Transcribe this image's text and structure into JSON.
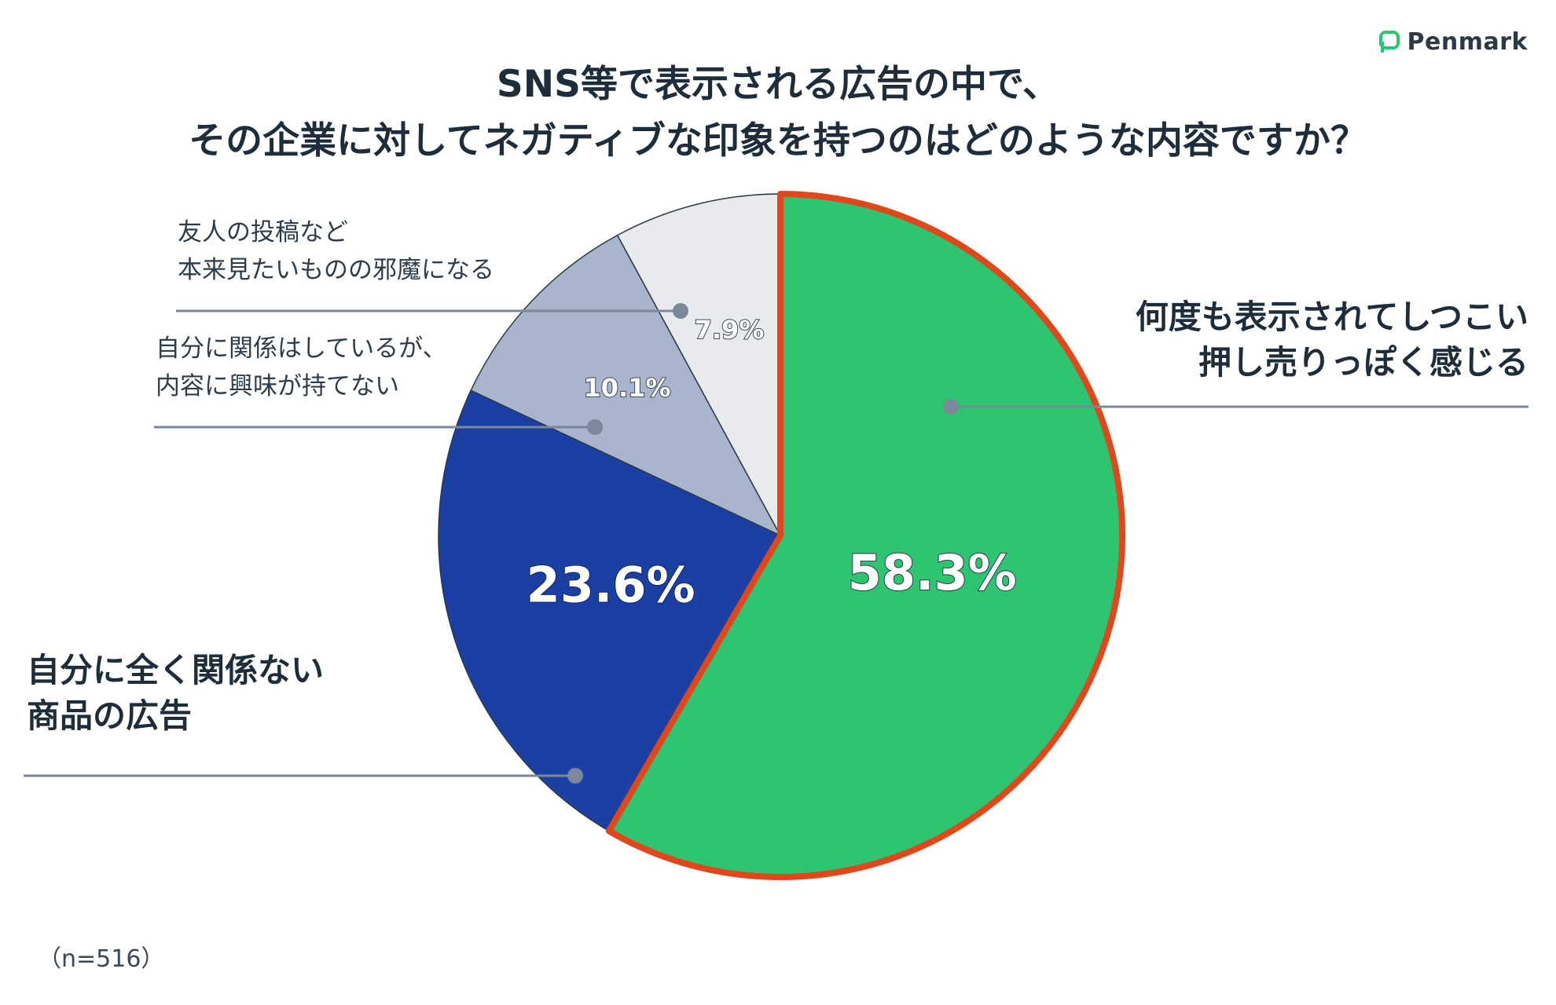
{
  "brand": {
    "name": "Penmark",
    "accent": "#2ec472"
  },
  "title": {
    "line1": "SNS等で表示される広告の中で、",
    "line2": "その企業に対してネガティブな印象を持つのはどのような内容ですか？"
  },
  "note": "（n=516）",
  "chart_data": {
    "type": "pie",
    "title": "SNS等で表示される広告の中で、その企業に対してネガティブな印象を持つのはどのような内容ですか？",
    "sample_size": 516,
    "start_angle_deg": 0,
    "direction": "clockwise",
    "slices": [
      {
        "label_lines": [
          "何度も表示されてしつこい",
          "押し売りっぽく感じる"
        ],
        "value": 58.3,
        "value_label": "58.3%",
        "color": "#2ec472",
        "highlight": true,
        "outline_color": "#e0481b"
      },
      {
        "label_lines": [
          "自分に全く関係ない",
          "商品の広告"
        ],
        "value": 23.6,
        "value_label": "23.6%",
        "color": "#1b3fa3",
        "highlight": false
      },
      {
        "label_lines": [
          "自分に関係はしているが、",
          "内容に興味が持てない"
        ],
        "value": 10.1,
        "value_label": "10.1%",
        "color": "#a9b4cd",
        "highlight": false
      },
      {
        "label_lines": [
          "友人の投稿など",
          "本来見たいものの邪魔になる"
        ],
        "value": 7.9,
        "value_label": "7.9%",
        "color": "#e8eaee",
        "highlight": false
      }
    ]
  }
}
